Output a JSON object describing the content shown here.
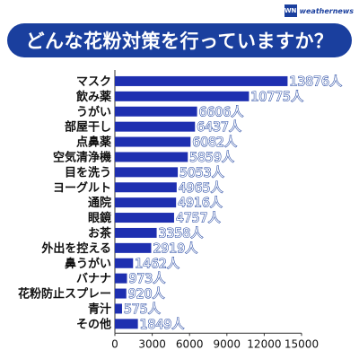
{
  "brand": {
    "mark": "WN",
    "name": "weathernews",
    "color": "#1a3f9e"
  },
  "chart_data": {
    "type": "bar",
    "orientation": "horizontal",
    "title": "どんな花粉対策を行っていますか？",
    "categories": [
      "マスク",
      "飲み薬",
      "うがい",
      "部屋干し",
      "点鼻薬",
      "空気清浄機",
      "目を洗う",
      "ヨーグルト",
      "通院",
      "眼鏡",
      "お茶",
      "外出を控える",
      "鼻うがい",
      "バナナ",
      "花粉防止スプレー",
      "青汁",
      "その他"
    ],
    "values": [
      13876,
      10775,
      6606,
      6437,
      6082,
      5859,
      5053,
      4965,
      4916,
      4757,
      3358,
      2919,
      1462,
      973,
      920,
      575,
      1849
    ],
    "value_labels": [
      "13876人",
      "10775人",
      "6606人",
      "6437人",
      "6082人",
      "5859人",
      "5053人",
      "4965人",
      "4916人",
      "4757人",
      "3358人",
      "2919人",
      "1462人",
      "973人",
      "920人",
      "575人",
      "1849人"
    ],
    "xlim": [
      0,
      15000
    ],
    "x_ticks": [
      0,
      3000,
      6000,
      9000,
      12000,
      15000
    ],
    "bar_color": "#1e2fb0",
    "grid": false
  }
}
